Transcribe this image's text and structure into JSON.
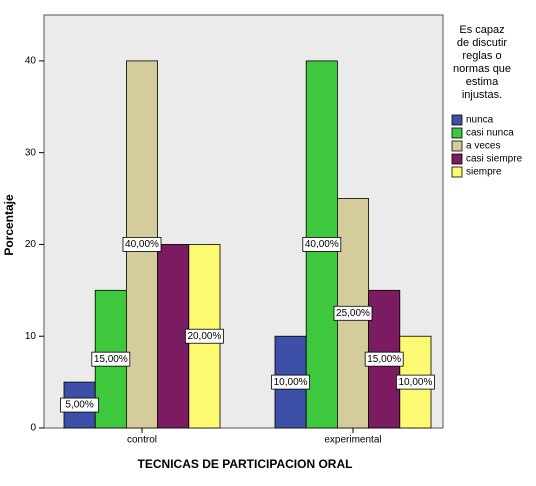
{
  "chart_data": {
    "type": "bar",
    "categories": [
      "control",
      "experimental"
    ],
    "xlabel": "TECNICAS DE PARTICIPACION ORAL",
    "ylabel": "Porcentaje",
    "legend_title": [
      "Es capaz",
      "de discutir",
      "reglas o",
      "normas que",
      "estima",
      "injustas."
    ],
    "series": [
      {
        "name": "nunca",
        "color": "#3d4fa6",
        "values": [
          5,
          10
        ],
        "value_labels": [
          "5,00%",
          "10,00%"
        ]
      },
      {
        "name": "casi nunca",
        "color": "#3ec83e",
        "values": [
          15,
          40
        ],
        "value_labels": [
          "15,00%",
          "40,00%"
        ]
      },
      {
        "name": "a veces",
        "color": "#d4cd9b",
        "values": [
          40,
          25
        ],
        "value_labels": [
          "40,00%",
          "25,00%"
        ]
      },
      {
        "name": "casi siempre",
        "color": "#7b1b61",
        "values": [
          20,
          15
        ],
        "value_labels": [
          null,
          "15,00%"
        ]
      },
      {
        "name": "siempre",
        "color": "#fbfa70",
        "values": [
          20,
          10
        ],
        "value_labels": [
          "20,00%",
          "10,00%"
        ]
      }
    ],
    "ylim": [
      0,
      45
    ],
    "yticks": [
      0,
      10,
      20,
      30,
      40
    ],
    "legend": "right"
  }
}
